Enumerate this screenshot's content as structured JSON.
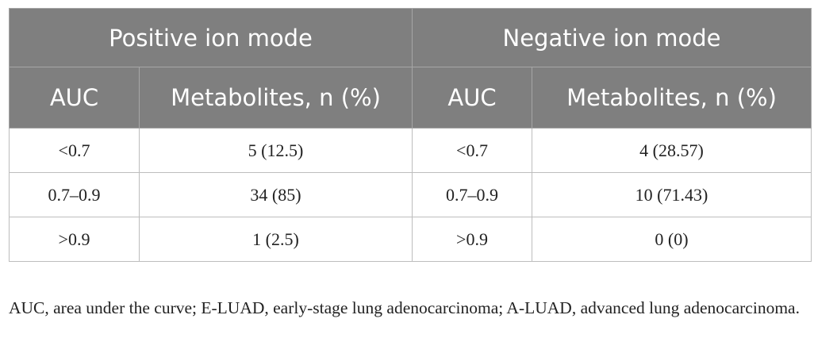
{
  "table": {
    "group_headers": [
      "Positive ion mode",
      "Negative ion mode"
    ],
    "sub_headers": [
      "AUC",
      "Metabolites, n (%)",
      "AUC",
      "Metabolites, n (%)"
    ],
    "rows": [
      [
        "<0.7",
        "5 (12.5)",
        "<0.7",
        "4 (28.57)"
      ],
      [
        "0.7–0.9",
        "34 (85)",
        "0.7–0.9",
        "10 (71.43)"
      ],
      [
        ">0.9",
        "1 (2.5)",
        ">0.9",
        "0 (0)"
      ]
    ]
  },
  "footnote": "AUC, area under the curve; E-LUAD, early-stage lung adenocarcinoma; A-LUAD, advanced lung adenocarcinoma.",
  "colors": {
    "header_bg": "#7f7f7f",
    "header_text": "#ffffff",
    "border": "#bdbdbd"
  }
}
